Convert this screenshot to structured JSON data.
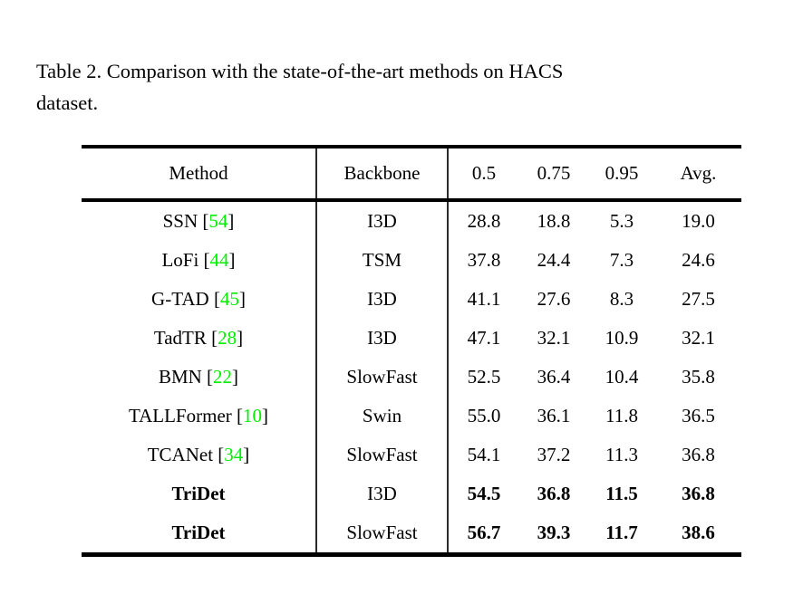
{
  "caption": {
    "line1": "Table 2. Comparison with the state-of-the-art methods on HACS",
    "line2": "dataset."
  },
  "colors": {
    "citation_green": "#00ee00",
    "text": "#000000",
    "rule": "#000000"
  },
  "table": {
    "headers": [
      "Method",
      "Backbone",
      "0.5",
      "0.75",
      "0.95",
      "Avg."
    ],
    "rows": [
      {
        "method": "SSN",
        "citation": "54",
        "backbone": "I3D",
        "values": [
          "28.8",
          "18.8",
          "5.3",
          "19.0"
        ],
        "bold": false
      },
      {
        "method": "LoFi",
        "citation": "44",
        "backbone": "TSM",
        "values": [
          "37.8",
          "24.4",
          "7.3",
          "24.6"
        ],
        "bold": false
      },
      {
        "method": "G-TAD",
        "citation": "45",
        "backbone": "I3D",
        "values": [
          "41.1",
          "27.6",
          "8.3",
          "27.5"
        ],
        "bold": false
      },
      {
        "method": "TadTR",
        "citation": "28",
        "backbone": "I3D",
        "values": [
          "47.1",
          "32.1",
          "10.9",
          "32.1"
        ],
        "bold": false
      },
      {
        "method": "BMN",
        "citation": "22",
        "backbone": "SlowFast",
        "values": [
          "52.5",
          "36.4",
          "10.4",
          "35.8"
        ],
        "bold": false
      },
      {
        "method": "TALLFormer",
        "citation": "10",
        "backbone": "Swin",
        "values": [
          "55.0",
          "36.1",
          "11.8",
          "36.5"
        ],
        "bold": false
      },
      {
        "method": "TCANet",
        "citation": "34",
        "backbone": "SlowFast",
        "values": [
          "54.1",
          "37.2",
          "11.3",
          "36.8"
        ],
        "bold": false
      },
      {
        "method": "TriDet",
        "citation": null,
        "backbone": "I3D",
        "values": [
          "54.5",
          "36.8",
          "11.5",
          "36.8"
        ],
        "bold": true
      },
      {
        "method": "TriDet",
        "citation": null,
        "backbone": "SlowFast",
        "values": [
          "56.7",
          "39.3",
          "11.7",
          "38.6"
        ],
        "bold": true
      }
    ]
  }
}
